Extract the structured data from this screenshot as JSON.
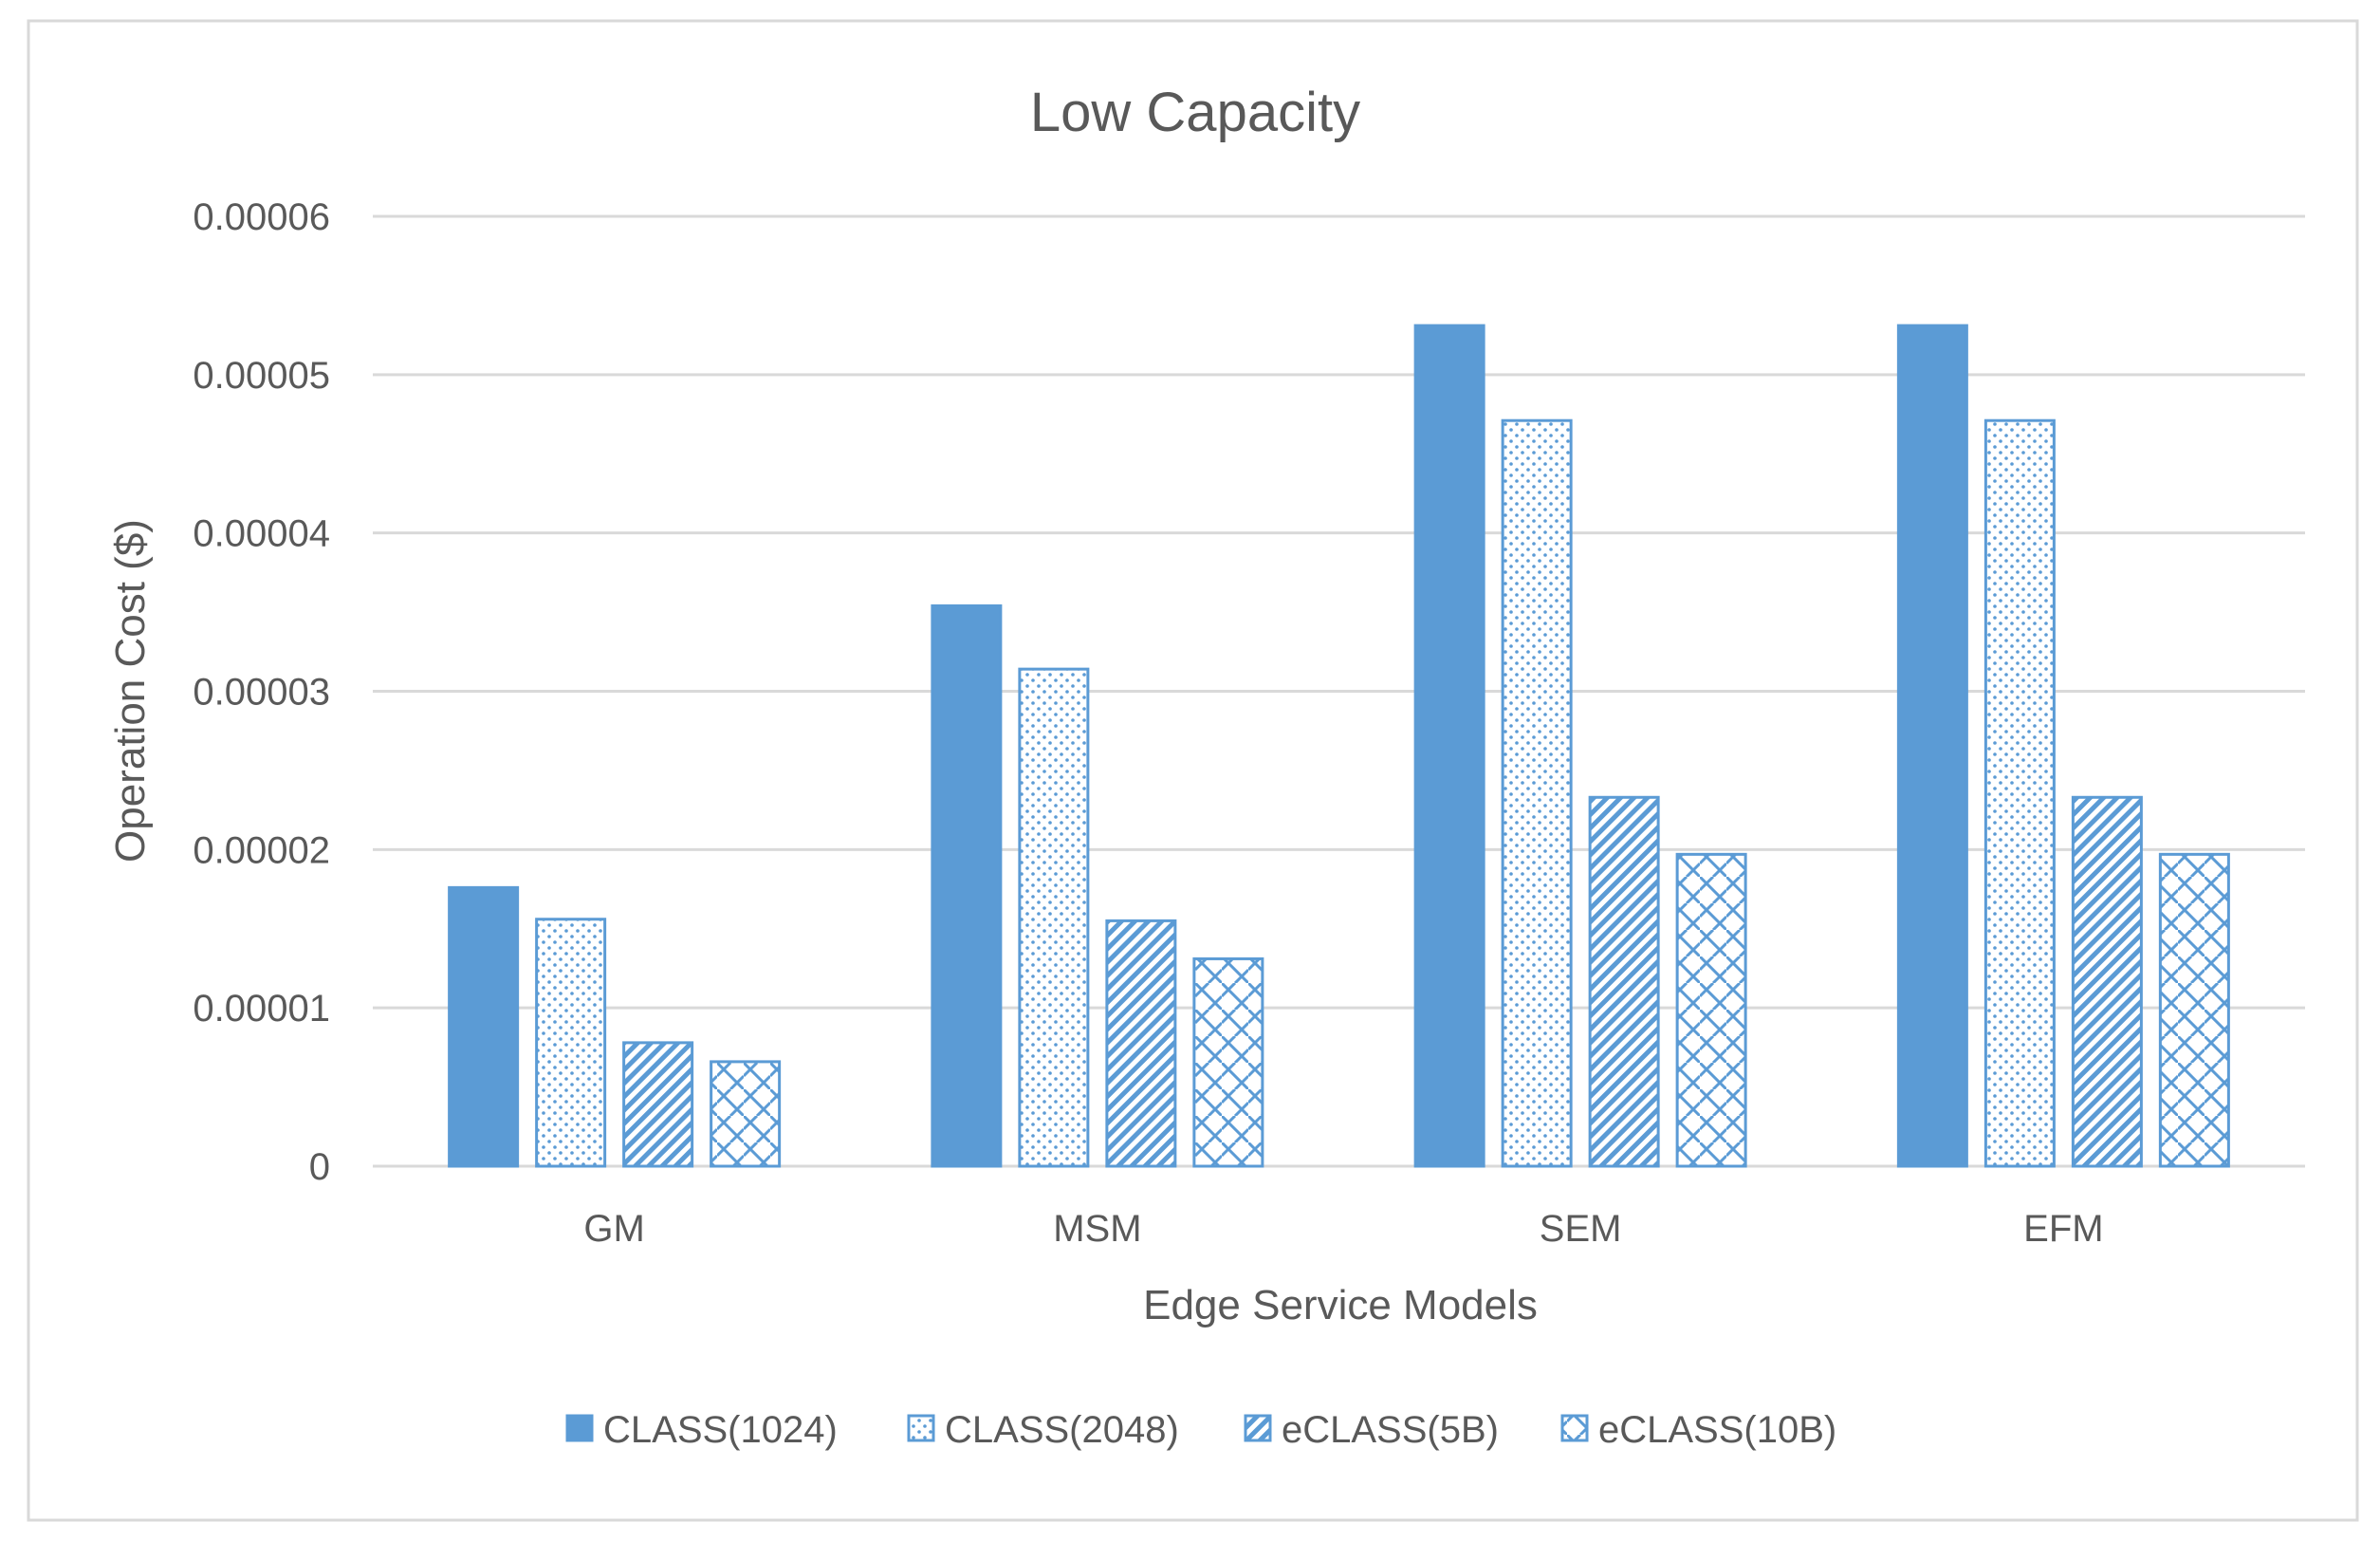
{
  "chart_data": {
    "type": "bar",
    "title": "Low Capacity",
    "xlabel": "Edge Service Models",
    "ylabel": "Operation Cost ($)",
    "categories": [
      "GM",
      "MSM",
      "SEM",
      "EFM"
    ],
    "ylim": [
      0,
      6e-05
    ],
    "yticks": [
      0,
      1e-05,
      2e-05,
      3e-05,
      4e-05,
      5e-05,
      6e-05
    ],
    "ytick_labels": [
      "0",
      "0.00001",
      "0.00002",
      "0.00003",
      "0.00004",
      "0.00005",
      "0.00006"
    ],
    "grid": true,
    "legend_position": "bottom",
    "series": [
      {
        "name": "CLASS(1024)",
        "pattern": "solid",
        "values": [
          1.76e-05,
          3.54e-05,
          5.31e-05,
          5.31e-05
        ]
      },
      {
        "name": "CLASS(2048)",
        "pattern": "dots",
        "values": [
          1.56e-05,
          3.14e-05,
          4.71e-05,
          4.71e-05
        ]
      },
      {
        "name": "eCLASS(5B)",
        "pattern": "diagonal",
        "values": [
          7.8e-06,
          1.55e-05,
          2.33e-05,
          2.33e-05
        ]
      },
      {
        "name": "eCLASS(10B)",
        "pattern": "weave",
        "values": [
          6.6e-06,
          1.31e-05,
          1.97e-05,
          1.97e-05
        ]
      }
    ],
    "colors": {
      "bar": "#5b9bd5",
      "grid": "#d9d9d9",
      "text": "#595959",
      "frame": "#d9d9d9"
    }
  }
}
